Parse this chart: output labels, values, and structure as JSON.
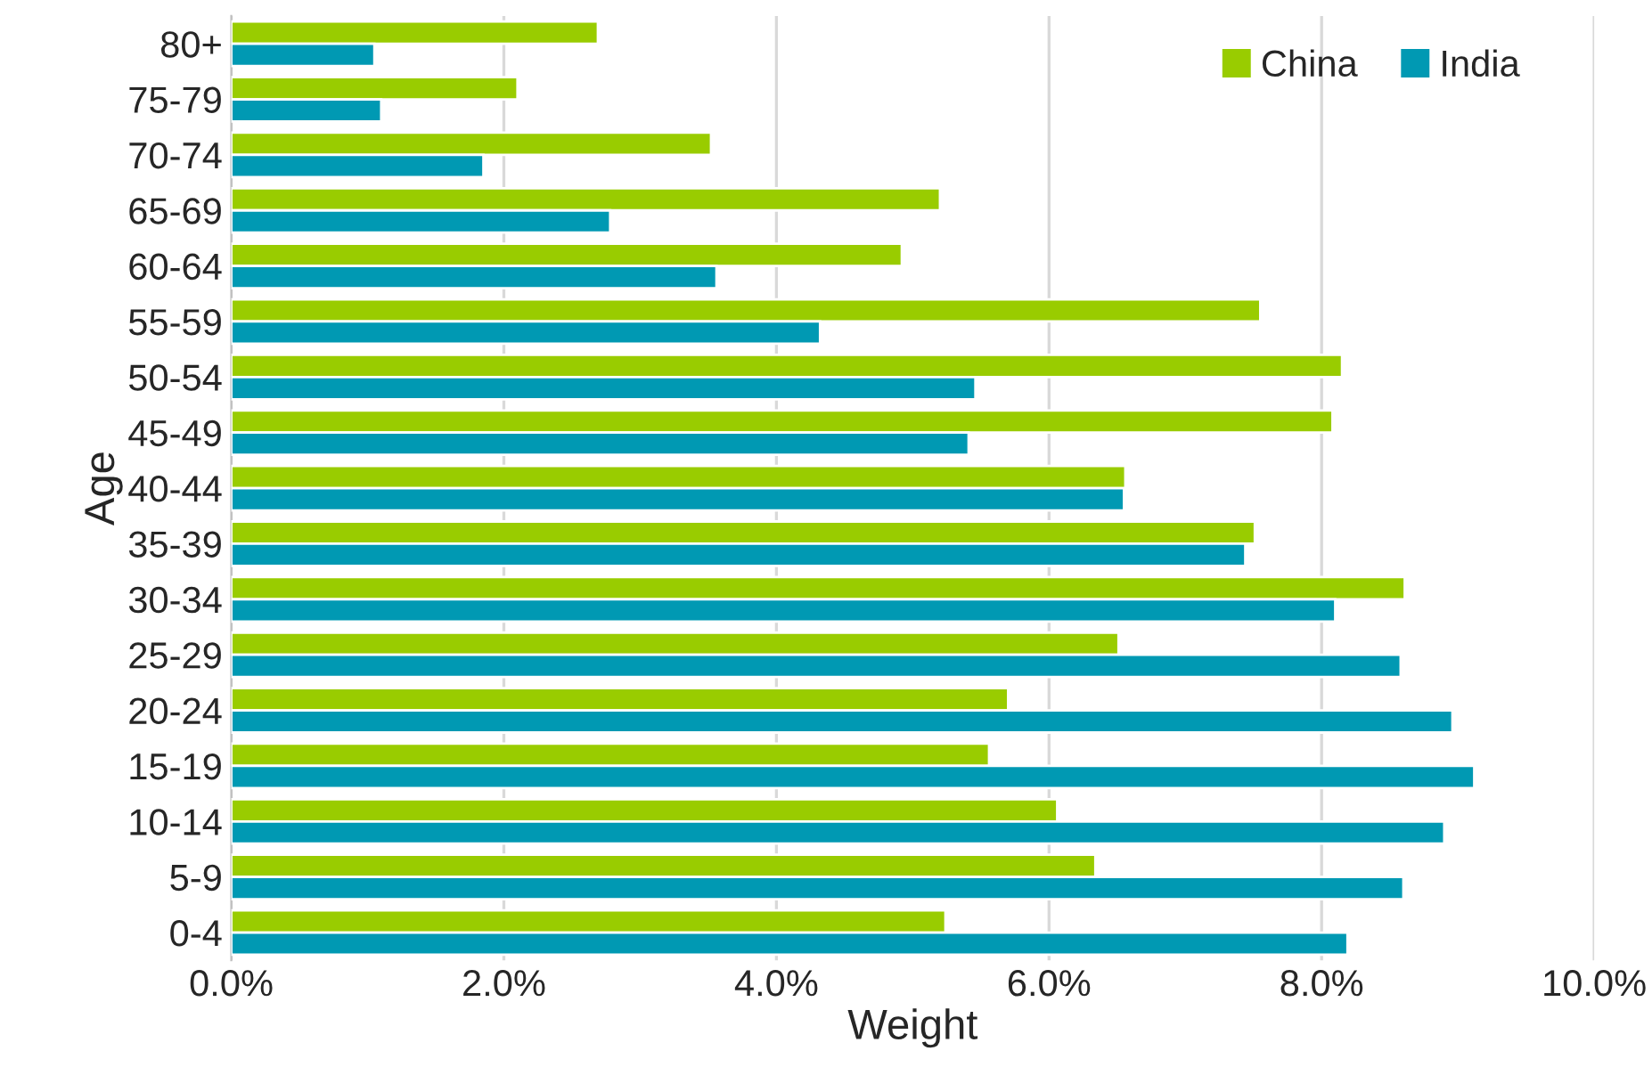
{
  "chart_data": {
    "type": "bar",
    "orientation": "horizontal",
    "xlabel": "Weight",
    "ylabel": "Age",
    "categories": [
      "80+",
      "75-79",
      "70-74",
      "65-69",
      "60-64",
      "55-59",
      "50-54",
      "45-49",
      "40-44",
      "35-39",
      "30-34",
      "25-29",
      "20-24",
      "15-19",
      "10-14",
      "5-9",
      "0-4"
    ],
    "series": [
      {
        "name": "China",
        "color": "#99cc00",
        "values": [
          2.69,
          2.1,
          3.52,
          5.2,
          4.92,
          7.55,
          8.15,
          8.08,
          6.56,
          7.51,
          8.61,
          6.51,
          5.7,
          5.56,
          6.06,
          6.34,
          5.24
        ]
      },
      {
        "name": "India",
        "color": "#0099b3",
        "values": [
          1.05,
          1.1,
          1.85,
          2.78,
          3.56,
          4.32,
          5.46,
          5.41,
          6.55,
          7.44,
          8.1,
          8.58,
          8.96,
          9.12,
          8.9,
          8.6,
          8.19
        ]
      }
    ],
    "xlim": [
      0,
      10
    ],
    "xticks": [
      {
        "value": 0,
        "label": "0.0%"
      },
      {
        "value": 2,
        "label": "2.0%"
      },
      {
        "value": 4,
        "label": "4.0%"
      },
      {
        "value": 6,
        "label": "6.0%"
      },
      {
        "value": 8,
        "label": "8.0%"
      },
      {
        "value": 10,
        "label": "10.0%"
      }
    ],
    "grid": "x",
    "legend": "top right"
  }
}
